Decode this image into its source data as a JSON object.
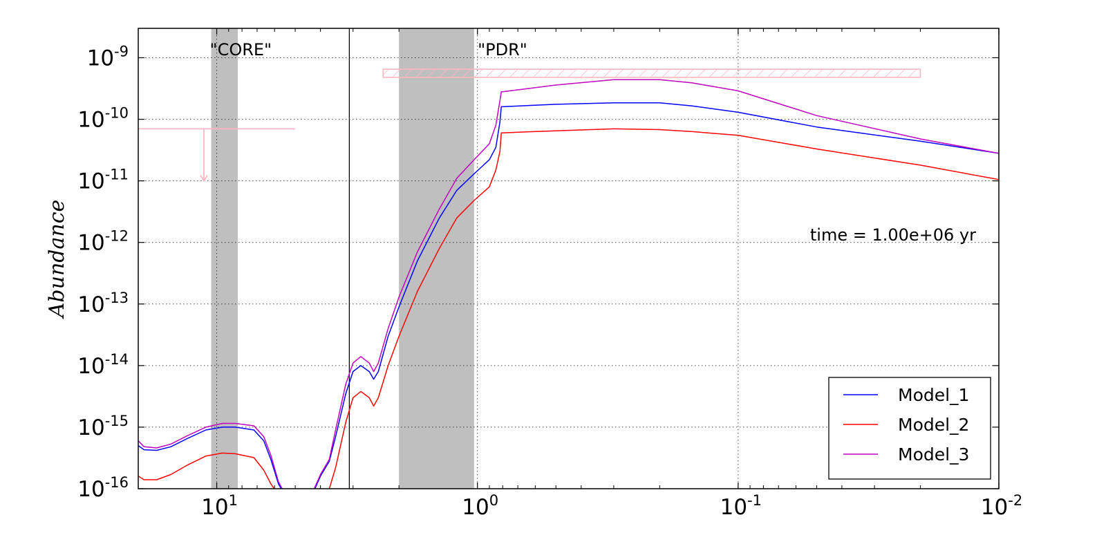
{
  "chart_data": {
    "type": "line",
    "title": "",
    "xlabel": "",
    "ylabel": "Abundance",
    "x_scale": "log",
    "x_reversed": true,
    "y_scale": "log",
    "xlim": [
      20,
      0.01
    ],
    "ylim": [
      1e-16,
      3e-09
    ],
    "grid": "dotted",
    "x_ticks": [
      {
        "value": 10,
        "base": "10",
        "exp": "1"
      },
      {
        "value": 1,
        "base": "10",
        "exp": "0"
      },
      {
        "value": 0.1,
        "base": "10",
        "exp": "-1"
      },
      {
        "value": 0.01,
        "base": "10",
        "exp": "-2"
      }
    ],
    "y_ticks": [
      {
        "value": 1e-16,
        "base": "10",
        "exp": "-16"
      },
      {
        "value": 1e-15,
        "base": "10",
        "exp": "-15"
      },
      {
        "value": 1e-14,
        "base": "10",
        "exp": "-14"
      },
      {
        "value": 1e-13,
        "base": "10",
        "exp": "-13"
      },
      {
        "value": 1e-12,
        "base": "10",
        "exp": "-12"
      },
      {
        "value": 1e-11,
        "base": "10",
        "exp": "-11"
      },
      {
        "value": 1e-10,
        "base": "10",
        "exp": "-10"
      },
      {
        "value": 1e-09,
        "base": "10",
        "exp": "-9"
      }
    ],
    "shaded_regions": [
      {
        "label": "\"CORE\"",
        "x_from": 10.5,
        "x_to": 8.3
      },
      {
        "label": "\"PDR\"",
        "x_from": 2.0,
        "x_to": 1.03
      }
    ],
    "vertical_line_x": 3.1,
    "observations": {
      "upper_limit": {
        "x_from": 20,
        "x_to": 5.0,
        "y": 7e-11,
        "arrow_x": 11.2,
        "arrow_to_y": 1e-11
      },
      "band": {
        "x_from": 2.3,
        "x_to": 0.02,
        "y_low": 4.8e-10,
        "y_high": 6.5e-10
      }
    },
    "annotation": "time = 1.00e+06 yr",
    "legend_position": "lower-right",
    "series": [
      {
        "name": "Model_1",
        "color": "#0000ff",
        "x": [
          20,
          19,
          17,
          15,
          13,
          11,
          9.5,
          8.5,
          7.2,
          6.6,
          6.2,
          5.8,
          5.5,
          null,
          4.3,
          4.0,
          3.7,
          3.5,
          3.2,
          3.0,
          2.8,
          2.6,
          2.5,
          2.4,
          2.2,
          2.0,
          1.7,
          1.4,
          1.2,
          1.03,
          0.9,
          0.85,
          0.82,
          0.81,
          0.8,
          0.75,
          0.5,
          0.3,
          0.2,
          0.15,
          0.1,
          0.05,
          0.02,
          0.01
        ],
        "y": [
          5e-16,
          4.3e-16,
          4.2e-16,
          4.8e-16,
          6.5e-16,
          9e-16,
          1e-15,
          1e-15,
          9e-16,
          6e-16,
          3e-16,
          1.2e-16,
          8e-17,
          null,
          8e-17,
          1.6e-16,
          2.8e-16,
          7e-16,
          3.5e-15,
          8e-15,
          1e-14,
          8e-15,
          6e-15,
          8e-15,
          3e-14,
          9e-14,
          5e-13,
          2.5e-12,
          7e-12,
          1.3e-11,
          2.2e-11,
          3.5e-11,
          9e-11,
          1.6e-10,
          1.6e-10,
          1.62e-10,
          1.75e-10,
          1.85e-10,
          1.85e-10,
          1.65e-10,
          1.3e-10,
          7.5e-11,
          4.4e-11,
          2.8e-11
        ]
      },
      {
        "name": "Model_2",
        "color": "#ff0000",
        "x": [
          20,
          19,
          17,
          15,
          13,
          11,
          9.5,
          8.5,
          7.2,
          6.6,
          6.2,
          5.8,
          5.5,
          null,
          4.3,
          4.0,
          3.7,
          3.5,
          3.2,
          3.0,
          2.8,
          2.6,
          2.5,
          2.4,
          2.2,
          2.0,
          1.7,
          1.4,
          1.2,
          1.03,
          0.9,
          0.85,
          0.82,
          0.81,
          0.8,
          0.75,
          0.5,
          0.3,
          0.2,
          0.15,
          0.1,
          0.05,
          0.02,
          0.01
        ],
        "y": [
          1.6e-16,
          1.4e-16,
          1.4e-16,
          1.7e-16,
          2.4e-16,
          3.4e-16,
          3.8e-16,
          3.7e-16,
          3.2e-16,
          2e-16,
          1.2e-16,
          8e-17,
          6e-17,
          null,
          6e-17,
          6e-17,
          1e-16,
          2.2e-16,
          1.2e-15,
          3e-15,
          3.8e-15,
          3e-15,
          2.2e-15,
          3e-15,
          1e-14,
          3e-14,
          1.6e-13,
          8e-13,
          2.5e-12,
          4.8e-12,
          8e-12,
          1.5e-11,
          3e-11,
          6e-11,
          6e-11,
          6.1e-11,
          6.5e-11,
          7e-11,
          6.8e-11,
          6.3e-11,
          5.5e-11,
          3.3e-11,
          1.8e-11,
          1.05e-11
        ]
      },
      {
        "name": "Model_3",
        "color": "#bf00bf",
        "x": [
          20,
          19,
          17,
          15,
          13,
          11,
          9.5,
          8.5,
          7.2,
          6.6,
          6.2,
          5.8,
          5.5,
          null,
          4.3,
          4.0,
          3.7,
          3.5,
          3.2,
          3.0,
          2.8,
          2.6,
          2.5,
          2.4,
          2.2,
          2.0,
          1.7,
          1.4,
          1.2,
          1.03,
          0.9,
          0.85,
          0.82,
          0.81,
          0.8,
          0.75,
          0.5,
          0.3,
          0.2,
          0.15,
          0.1,
          0.05,
          0.02,
          0.01
        ],
        "y": [
          6e-16,
          4.8e-16,
          4.6e-16,
          5.3e-16,
          7.2e-16,
          1e-15,
          1.15e-15,
          1.15e-15,
          1.05e-15,
          7e-16,
          3.5e-16,
          1.3e-16,
          8.5e-17,
          null,
          8.5e-17,
          1.7e-16,
          3e-16,
          9e-16,
          5e-15,
          1.1e-14,
          1.4e-14,
          1.1e-14,
          8e-15,
          1.1e-14,
          4e-14,
          1.3e-13,
          7e-13,
          3.5e-12,
          1.1e-11,
          2.2e-11,
          4e-11,
          8e-11,
          2e-10,
          2.8e-10,
          2.8e-10,
          2.9e-10,
          3.6e-10,
          4.4e-10,
          4.4e-10,
          3.9e-10,
          2.9e-10,
          1.15e-10,
          4.8e-11,
          2.8e-11
        ]
      }
    ]
  }
}
